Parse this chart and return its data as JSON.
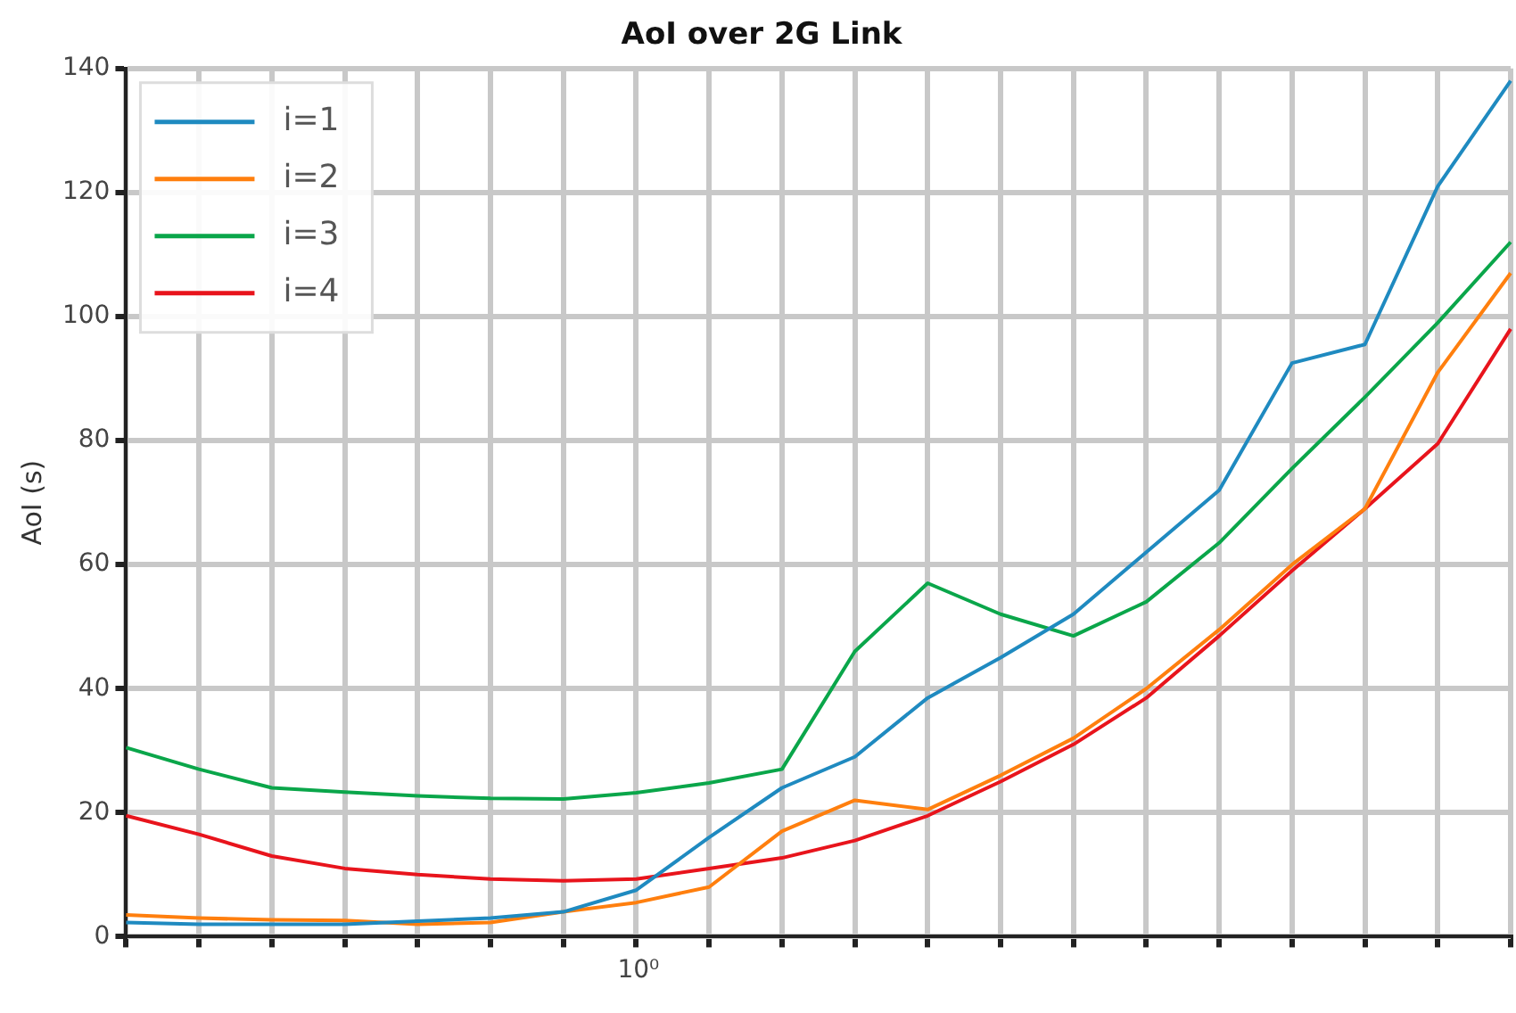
{
  "chart_data": {
    "type": "line",
    "title": "AoI over 2G Link",
    "ylabel": "AoI (s)",
    "categories": [
      null,
      null,
      null,
      null,
      null,
      null,
      null,
      null,
      null,
      null,
      null,
      null,
      null,
      null,
      null,
      null,
      null,
      null,
      null,
      null
    ],
    "series": [
      {
        "name": "i=1",
        "color": "#1f8ac0",
        "values": [
          2.3,
          2,
          2,
          2,
          2.5,
          3,
          4,
          7.5,
          16,
          24,
          29,
          38.5,
          45,
          52,
          62,
          72,
          92.5,
          95.5,
          121,
          138
        ]
      },
      {
        "name": "i=2",
        "color": "#ff7f0e",
        "values": [
          3.5,
          3,
          2.7,
          2.6,
          2,
          2.3,
          4,
          5.5,
          8,
          17,
          22,
          20.5,
          26,
          32,
          40,
          49.5,
          60,
          69,
          91,
          107
        ]
      },
      {
        "name": "i=3",
        "color": "#0aa64a",
        "values": [
          30.5,
          27,
          24,
          23.3,
          22.7,
          22.3,
          22.2,
          23.2,
          24.8,
          27,
          46,
          57,
          52,
          48.5,
          54,
          63.5,
          75.5,
          87,
          99,
          112
        ]
      },
      {
        "name": "i=4",
        "color": "#e8141c",
        "values": [
          19.5,
          16.5,
          13,
          11,
          10,
          9.3,
          9,
          9.3,
          11,
          12.7,
          15.5,
          19.5,
          25,
          31,
          38.5,
          48.5,
          59,
          69,
          79.5,
          98
        ]
      }
    ],
    "annotations": [
      "10⁰"
    ],
    "ylim": [
      0,
      140
    ],
    "yticks": [
      0,
      20,
      40,
      60,
      80,
      100,
      120,
      140
    ],
    "grid": true,
    "legend": "top left",
    "marker": "none",
    "line_style": "solid"
  }
}
